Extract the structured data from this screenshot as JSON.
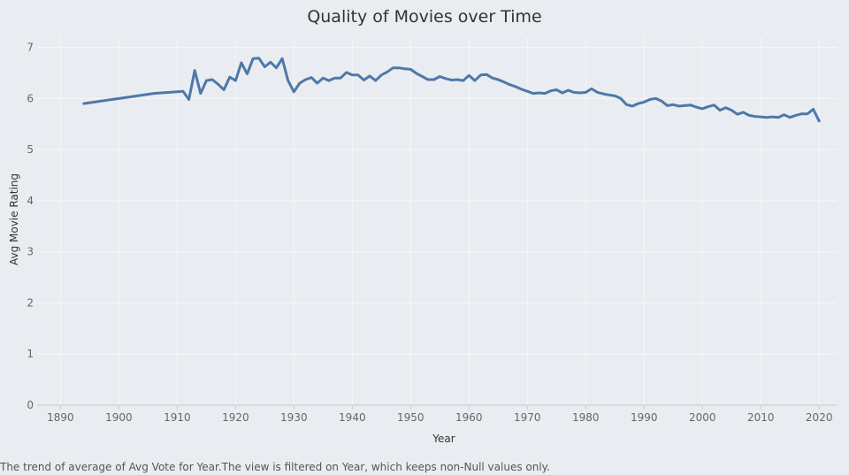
{
  "colors": {
    "background": "#e9edf2",
    "line": "#4e79a7",
    "grid": "#f5f7fa"
  },
  "caption": "The trend of average of Avg Vote for Year.The view is filtered on Year, which keeps non-Null values only.",
  "chart_data": {
    "type": "line",
    "title": "Quality of Movies over Time",
    "xlabel": "Year",
    "ylabel": "Avg Movie Rating",
    "xlim": [
      1886,
      2023
    ],
    "ylim": [
      0,
      7.2
    ],
    "xticks": [
      1890,
      1900,
      1910,
      1920,
      1930,
      1940,
      1950,
      1960,
      1970,
      1980,
      1990,
      2000,
      2010,
      2020
    ],
    "yticks": [
      0,
      1,
      2,
      3,
      4,
      5,
      6,
      7
    ],
    "grid": true,
    "series": [
      {
        "x": [
          1894,
          1906,
          1911,
          1912,
          1913,
          1914,
          1915,
          1916,
          1917,
          1918,
          1919,
          1920,
          1921,
          1922,
          1923,
          1924,
          1925,
          1926,
          1927,
          1928,
          1929,
          1930,
          1931,
          1932,
          1933,
          1934,
          1935,
          1936,
          1937,
          1938,
          1939,
          1940,
          1941,
          1942,
          1943,
          1944,
          1945,
          1946,
          1947,
          1948,
          1949,
          1950,
          1951,
          1952,
          1953,
          1954,
          1955,
          1956,
          1957,
          1958,
          1959,
          1960,
          1961,
          1962,
          1963,
          1964,
          1965,
          1966,
          1967,
          1968,
          1969,
          1970,
          1971,
          1972,
          1973,
          1974,
          1975,
          1976,
          1977,
          1978,
          1979,
          1980,
          1981,
          1982,
          1983,
          1984,
          1985,
          1986,
          1987,
          1988,
          1989,
          1990,
          1991,
          1992,
          1993,
          1994,
          1995,
          1996,
          1997,
          1998,
          1999,
          2000,
          2001,
          2002,
          2003,
          2004,
          2005,
          2006,
          2007,
          2008,
          2009,
          2010,
          2011,
          2012,
          2013,
          2014,
          2015,
          2016,
          2017,
          2018,
          2019,
          2020
        ],
        "values": [
          5.9,
          6.1,
          6.14,
          5.98,
          6.55,
          6.1,
          6.35,
          6.37,
          6.28,
          6.17,
          6.42,
          6.35,
          6.7,
          6.48,
          6.78,
          6.79,
          6.62,
          6.71,
          6.6,
          6.78,
          6.35,
          6.13,
          6.3,
          6.37,
          6.41,
          6.3,
          6.4,
          6.35,
          6.4,
          6.4,
          6.51,
          6.46,
          6.46,
          6.36,
          6.44,
          6.35,
          6.46,
          6.52,
          6.6,
          6.6,
          6.58,
          6.57,
          6.49,
          6.43,
          6.37,
          6.37,
          6.43,
          6.39,
          6.36,
          6.37,
          6.35,
          6.45,
          6.35,
          6.46,
          6.47,
          6.4,
          6.37,
          6.32,
          6.27,
          6.23,
          6.18,
          6.14,
          6.1,
          6.11,
          6.1,
          6.15,
          6.17,
          6.11,
          6.16,
          6.12,
          6.11,
          6.12,
          6.19,
          6.12,
          6.09,
          6.07,
          6.05,
          6.0,
          5.88,
          5.85,
          5.9,
          5.93,
          5.98,
          6.0,
          5.95,
          5.86,
          5.88,
          5.85,
          5.86,
          5.87,
          5.83,
          5.8,
          5.84,
          5.87,
          5.77,
          5.82,
          5.77,
          5.69,
          5.73,
          5.67,
          5.65,
          5.64,
          5.63,
          5.64,
          5.63,
          5.68,
          5.63,
          5.67,
          5.7,
          5.7,
          5.79,
          5.56
        ]
      }
    ]
  }
}
